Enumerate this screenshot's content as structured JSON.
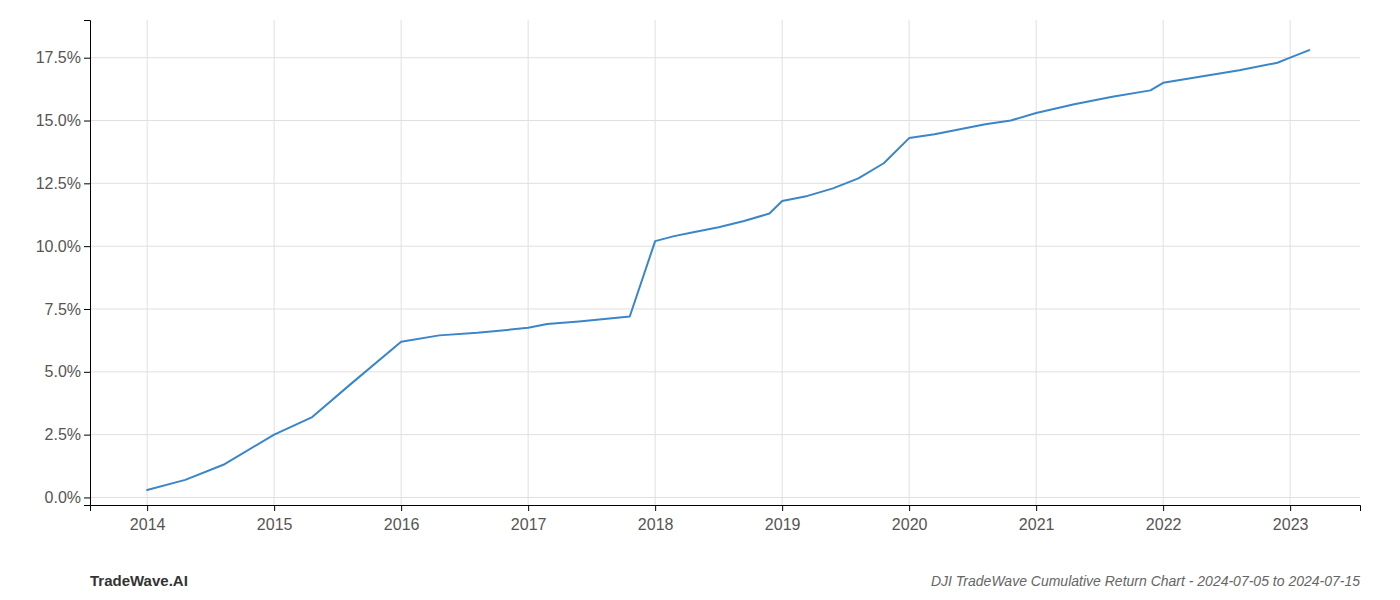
{
  "chart_data": {
    "type": "line",
    "title": "DJI TradeWave Cumulative Return Chart - 2024-07-05 to 2024-07-15",
    "annotations": [
      "TradeWave.AI"
    ],
    "x": [
      2014.0,
      2014.3,
      2014.6,
      2015.0,
      2015.3,
      2015.6,
      2016.0,
      2016.3,
      2016.6,
      2017.0,
      2017.15,
      2017.4,
      2017.6,
      2017.8,
      2018.0,
      2018.15,
      2018.3,
      2018.5,
      2018.7,
      2018.9,
      2019.0,
      2019.2,
      2019.4,
      2019.6,
      2019.8,
      2020.0,
      2020.2,
      2020.4,
      2020.6,
      2020.8,
      2021.0,
      2021.3,
      2021.6,
      2021.9,
      2022.0,
      2022.3,
      2022.6,
      2022.9,
      2023.0,
      2023.15
    ],
    "values": [
      0.3,
      0.7,
      1.3,
      2.5,
      3.2,
      4.5,
      6.2,
      6.45,
      6.55,
      6.75,
      6.9,
      7.0,
      7.1,
      7.2,
      10.2,
      10.4,
      10.55,
      10.75,
      11.0,
      11.3,
      11.8,
      12.0,
      12.3,
      12.7,
      13.3,
      14.3,
      14.45,
      14.65,
      14.85,
      15.0,
      15.3,
      15.65,
      15.95,
      16.2,
      16.5,
      16.75,
      17.0,
      17.3,
      17.5,
      17.8
    ],
    "color": "#3a86c8",
    "xlim": [
      2013.55,
      2023.55
    ],
    "ylim": [
      -0.3,
      19.0
    ],
    "xticks": [
      2014,
      2015,
      2016,
      2017,
      2018,
      2019,
      2020,
      2021,
      2022,
      2023
    ],
    "yticks": [
      {
        "value": 0,
        "label": "0.0%"
      },
      {
        "value": 2.5,
        "label": "2.5%"
      },
      {
        "value": 5,
        "label": "5.0%"
      },
      {
        "value": 7.5,
        "label": "7.5%"
      },
      {
        "value": 10,
        "label": "10.0%"
      },
      {
        "value": 12.5,
        "label": "12.5%"
      },
      {
        "value": 15,
        "label": "15.0%"
      },
      {
        "value": 17.5,
        "label": "17.5%"
      }
    ],
    "grid": true
  }
}
